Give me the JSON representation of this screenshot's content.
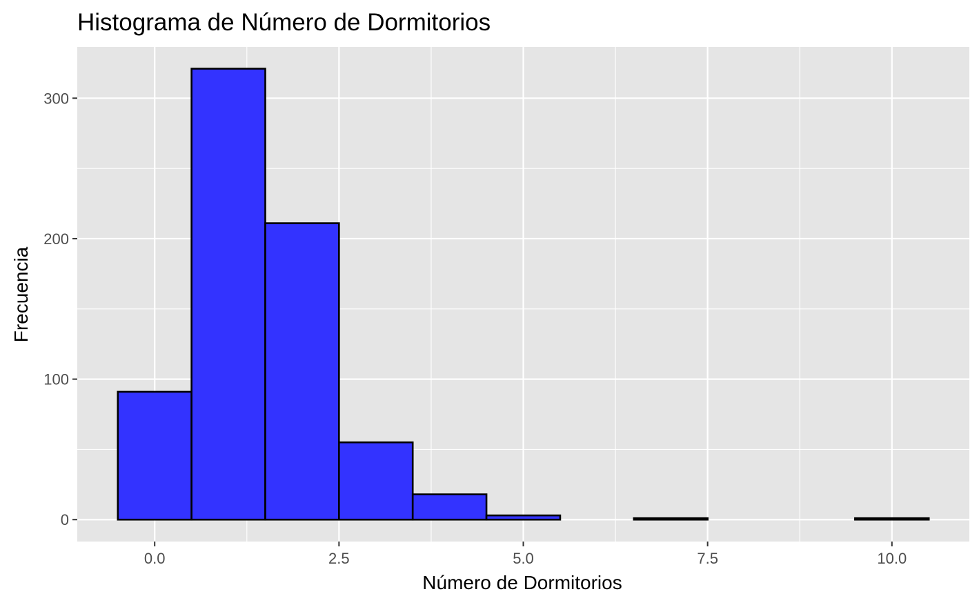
{
  "chart_data": {
    "type": "bar",
    "title": "Histograma de Número de Dormitorios",
    "xlabel": "Número de Dormitorios",
    "ylabel": "Frecuencia",
    "bin_width": 1,
    "bins": [
      {
        "center": 0,
        "count": 91
      },
      {
        "center": 1,
        "count": 321
      },
      {
        "center": 2,
        "count": 211
      },
      {
        "center": 3,
        "count": 55
      },
      {
        "center": 4,
        "count": 18
      },
      {
        "center": 5,
        "count": 3
      },
      {
        "center": 6,
        "count": 0
      },
      {
        "center": 7,
        "count": 1
      },
      {
        "center": 8,
        "count": 0
      },
      {
        "center": 9,
        "count": 0
      },
      {
        "center": 10,
        "count": 1
      }
    ],
    "xlim": [
      -1.05,
      11.05
    ],
    "ylim": [
      -15.6,
      336.5
    ],
    "x_ticks": [
      0,
      2.5,
      5,
      7.5,
      10
    ],
    "x_tick_labels": [
      "0.0",
      "2.5",
      "5.0",
      "7.5",
      "10.0"
    ],
    "y_ticks": [
      0,
      100,
      200,
      300
    ],
    "y_tick_labels": [
      "0",
      "100",
      "200",
      "300"
    ],
    "grid": true,
    "colors": {
      "bar_fill": "#3333ff",
      "bar_stroke": "#000000",
      "panel_background": "#e5e5e5",
      "grid": "#ffffff"
    }
  }
}
